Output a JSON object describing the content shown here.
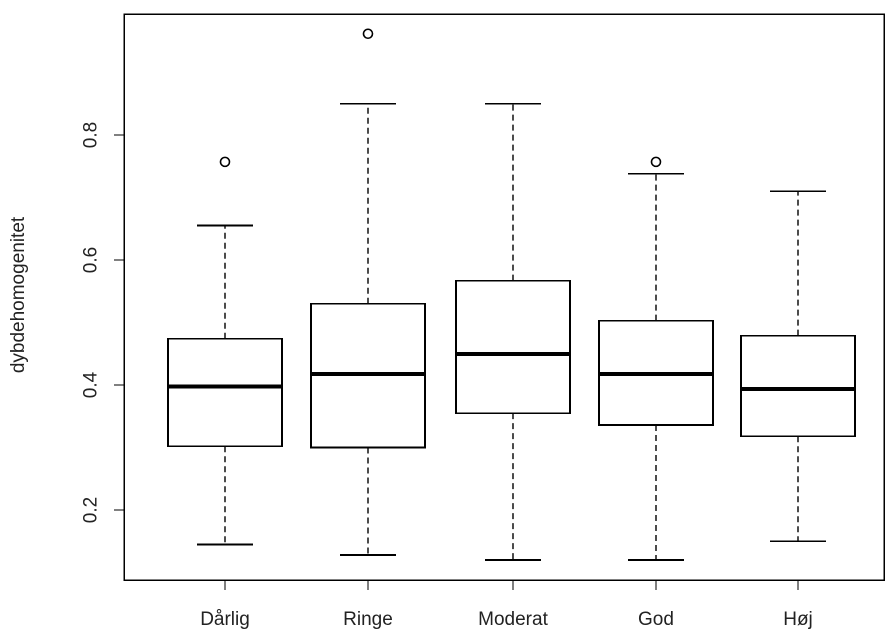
{
  "chart_data": {
    "type": "box",
    "title": "",
    "xlabel": "",
    "ylabel": "dybdehomogenitet",
    "ylim": [
      0.08,
      1.0
    ],
    "yticks": [
      0.2,
      0.4,
      0.6,
      0.8
    ],
    "ytick_labels": [
      "0.2",
      "0.4",
      "0.6",
      "0.8"
    ],
    "categories": [
      "Dårlig",
      "Ringe",
      "Moderat",
      "God",
      "Høj"
    ],
    "boxes": [
      {
        "category": "Dårlig",
        "whisker_low": 0.145,
        "q1": 0.302,
        "median": 0.398,
        "q3": 0.474,
        "whisker_high": 0.655,
        "outliers": [
          0.757
        ]
      },
      {
        "category": "Ringe",
        "whisker_low": 0.128,
        "q1": 0.3,
        "median": 0.418,
        "q3": 0.53,
        "whisker_high": 0.85,
        "outliers": [
          0.962
        ]
      },
      {
        "category": "Moderat",
        "whisker_low": 0.12,
        "q1": 0.355,
        "median": 0.45,
        "q3": 0.567,
        "whisker_high": 0.85,
        "outliers": []
      },
      {
        "category": "God",
        "whisker_low": 0.12,
        "q1": 0.336,
        "median": 0.418,
        "q3": 0.503,
        "whisker_high": 0.738,
        "outliers": [
          0.757
        ]
      },
      {
        "category": "Høj",
        "whisker_low": 0.15,
        "q1": 0.318,
        "median": 0.394,
        "q3": 0.479,
        "whisker_high": 0.71,
        "outliers": []
      }
    ],
    "grid": false,
    "legend": "none"
  }
}
